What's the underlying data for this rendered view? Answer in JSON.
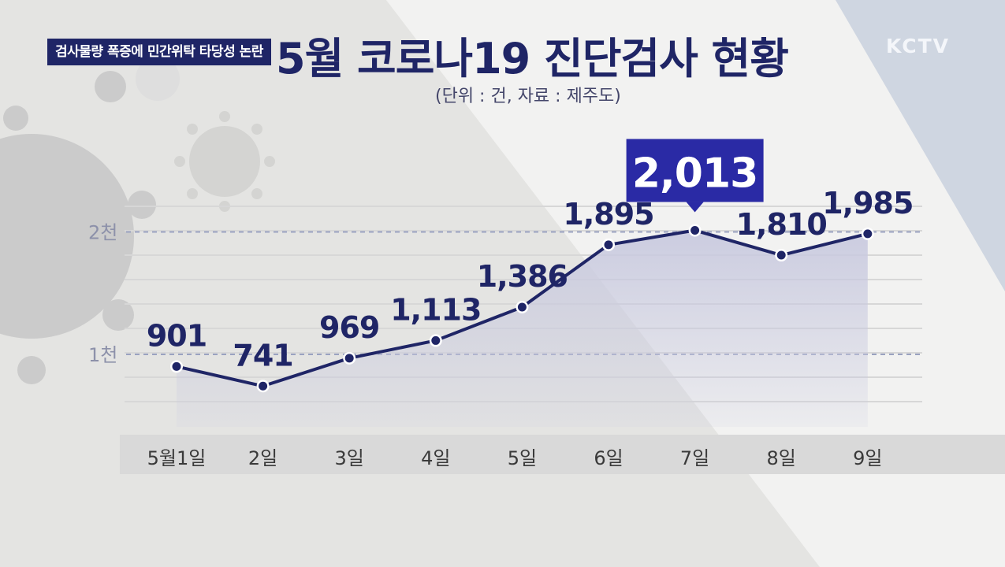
{
  "header": {
    "tag": "검사물량 폭증에 민간위탁 타당성 논란",
    "title": "5월 코로나19 진단검사 현황",
    "subtitle": "(단위 : 건, 자료 : 제주도)",
    "logo": "KCTV"
  },
  "colors": {
    "navy": "#1f2566",
    "line": "#1f2566",
    "highlight_box": "#2a2aa5",
    "area_fill": "#c9cadf"
  },
  "chart_data": {
    "type": "line",
    "title": "5월 코로나19 진단검사 현황",
    "unit_note": "(단위 : 건, 자료 : 제주도)",
    "categories": [
      "5월1일",
      "2일",
      "3일",
      "4일",
      "5일",
      "6일",
      "7일",
      "8일",
      "9일"
    ],
    "values": [
      901,
      741,
      969,
      1113,
      1386,
      1895,
      2013,
      1810,
      1985
    ],
    "value_labels": [
      "901",
      "741",
      "969",
      "1,113",
      "1,386",
      "1,895",
      "2,013",
      "1,810",
      "1,985"
    ],
    "y_ticks": [
      {
        "value": 1000,
        "label": "1천"
      },
      {
        "value": 2000,
        "label": "2천"
      }
    ],
    "ylim": [
      0,
      2200
    ],
    "highlight_index": 6,
    "grid": true,
    "area_fill": true
  }
}
